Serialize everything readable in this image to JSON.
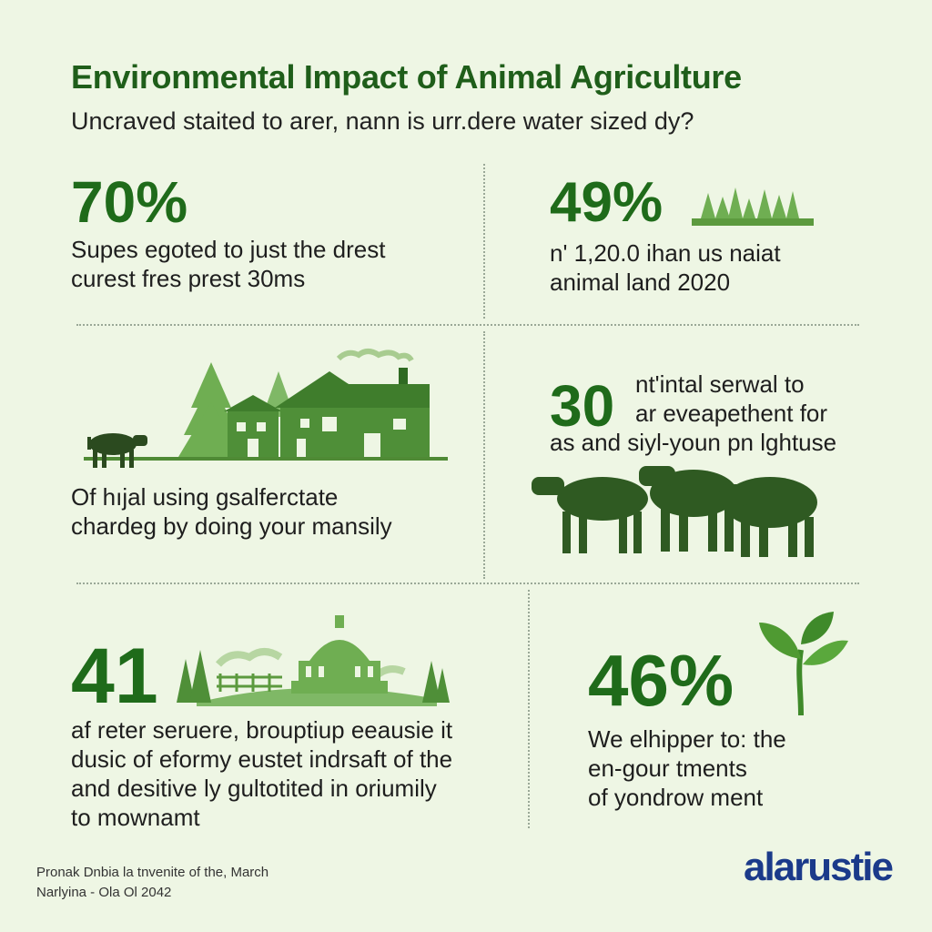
{
  "header": {
    "title": "Environmental Impact of Animal Agriculture",
    "subtitle": "Uncraved staited to arer, nann is urr.dere water sized dy?"
  },
  "stats": [
    {
      "value": "70%",
      "lines": [
        "Supes egoted to just the drest",
        "curest fres prest 30ms"
      ]
    },
    {
      "value": "49%",
      "lines": [
        "n' 1,20.0 ihan us naiat",
        "animal land 2020"
      ]
    },
    {
      "value": "",
      "lines": [
        "Of hıjal using gsalferctate",
        "chardeg by doing your mansily"
      ]
    },
    {
      "value": "30",
      "lines": [
        "nt'intal serwal to",
        "ar eveapethent for",
        "as and siyl-youn pn lghtuse"
      ]
    },
    {
      "value": "41",
      "lines": [
        "af reter seruere, brouptiup eeausie it",
        "dusic of eformy eustet indrsaft of the",
        "and desitive ly gultotited in oriumily",
        "to mownamt"
      ]
    },
    {
      "value": "46%",
      "lines": [
        "We elhipper to: the",
        "en-gour tments",
        "of yondrow ment"
      ]
    }
  ],
  "footer": {
    "lines": [
      "Pronak Dnbia la tnvenite of the, March",
      "Narlyina - Ola Ol 2042"
    ],
    "brand": "alarustie"
  },
  "icons": [
    "forest-icon",
    "farm-house-icon",
    "cow-icon",
    "cattle-herd-icon",
    "capitol-landscape-icon",
    "sprout-icon"
  ],
  "colors": {
    "background": "#eef6e4",
    "accent": "#1f6b1a",
    "brand": "#1b3a8a"
  }
}
